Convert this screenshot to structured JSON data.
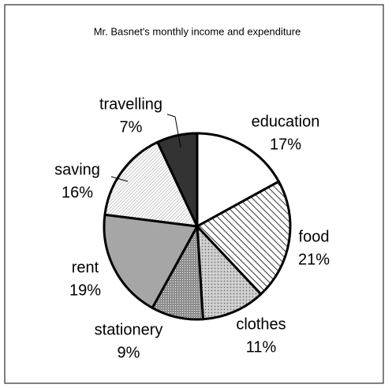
{
  "chart_data": {
    "type": "pie",
    "title": "Mr. Basnet's monthly income and expenditure",
    "categories": [
      "education",
      "food",
      "clothes",
      "stationery",
      "rent",
      "saving",
      "travelling"
    ],
    "values": [
      17,
      21,
      11,
      9,
      19,
      16,
      7
    ],
    "value_labels": [
      "17%",
      "21%",
      "11%",
      "9%",
      "19%",
      "16%",
      "7%"
    ],
    "colors": [
      "#ffffff",
      "#ffffff",
      "#c8c8c8",
      "#8c8c8c",
      "#a6a6a6",
      "#ffffff",
      "#333333"
    ]
  }
}
